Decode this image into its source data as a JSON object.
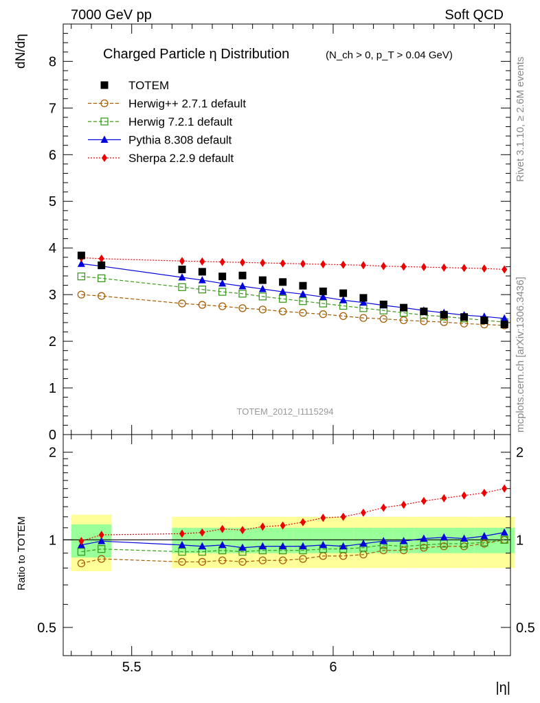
{
  "header": {
    "left": "7000 GeV pp",
    "right": "Soft QCD"
  },
  "side": {
    "rivet": "Rivet 3.1.10, ≥ 2.6M events",
    "mcplots": "mcplots.cern.ch [arXiv:1306.3436]"
  },
  "chart_data": {
    "type": "line",
    "title_main": "Charged Particle η Distribution",
    "title_sub": "(N_ch > 0, p_T > 0.04 GeV)",
    "watermark": "TOTEM_2012_I1115294",
    "ylabel_top": "dN/dη",
    "ylabel_bottom": "Ratio to TOTEM",
    "xlabel": "|η|",
    "xlim": [
      5.33,
      6.44
    ],
    "ylim_top": [
      0,
      8.8
    ],
    "ylim_bottom": [
      0.4,
      2.3
    ],
    "x_ticks": [
      5.5,
      6
    ],
    "x_tick_labels": [
      "5.5",
      "6"
    ],
    "y_ticks_top": [
      0,
      1,
      2,
      3,
      4,
      5,
      6,
      7,
      8
    ],
    "y_tick_labels_top": [
      "0",
      "1",
      "2",
      "3",
      "4",
      "5",
      "6",
      "7",
      "8"
    ],
    "y_ticks_bottom": [
      0.5,
      1,
      2
    ],
    "y_tick_labels_bottom": [
      "0.5",
      "1",
      "2"
    ],
    "legend_position": "top-left",
    "data": {
      "name": "TOTEM",
      "color": "#000000",
      "x": [
        5.375,
        5.425,
        5.625,
        5.675,
        5.725,
        5.775,
        5.825,
        5.875,
        5.925,
        5.975,
        6.025,
        6.075,
        6.125,
        6.175,
        6.225,
        6.275,
        6.325,
        6.375,
        6.425
      ],
      "y": [
        3.84,
        3.63,
        3.54,
        3.49,
        3.39,
        3.41,
        3.31,
        3.27,
        3.19,
        3.07,
        3.03,
        2.93,
        2.79,
        2.72,
        2.64,
        2.57,
        2.52,
        2.45,
        2.36
      ],
      "band_inner": [
        0.13,
        0.13,
        0.1,
        0.1,
        0.1,
        0.1,
        0.1,
        0.1,
        0.1,
        0.1,
        0.1,
        0.1,
        0.1,
        0.1,
        0.1,
        0.1,
        0.1,
        0.1,
        0.1
      ],
      "band_outer": [
        0.22,
        0.22,
        0.2,
        0.2,
        0.2,
        0.2,
        0.2,
        0.2,
        0.2,
        0.2,
        0.2,
        0.2,
        0.2,
        0.2,
        0.2,
        0.2,
        0.2,
        0.2,
        0.2
      ]
    },
    "series": [
      {
        "name": "Herwig++ 2.7.1 default",
        "color": "#a65b00",
        "marker": "open-circle",
        "line": "dashed",
        "y": [
          3.0,
          2.97,
          2.81,
          2.78,
          2.75,
          2.71,
          2.68,
          2.64,
          2.61,
          2.58,
          2.54,
          2.5,
          2.48,
          2.45,
          2.43,
          2.41,
          2.38,
          2.36,
          2.34
        ],
        "ratio": [
          0.83,
          0.86,
          0.84,
          0.84,
          0.85,
          0.84,
          0.85,
          0.85,
          0.86,
          0.88,
          0.88,
          0.89,
          0.92,
          0.92,
          0.94,
          0.95,
          0.95,
          0.97,
          1.0
        ]
      },
      {
        "name": "Herwig 7.2.1 default",
        "color": "#3a9a1a",
        "marker": "open-square",
        "line": "dashed",
        "y": [
          3.39,
          3.35,
          3.16,
          3.11,
          3.06,
          3.02,
          2.96,
          2.91,
          2.86,
          2.81,
          2.76,
          2.71,
          2.66,
          2.61,
          2.56,
          2.53,
          2.49,
          2.45,
          2.41
        ],
        "ratio": [
          0.91,
          0.93,
          0.91,
          0.91,
          0.92,
          0.91,
          0.92,
          0.92,
          0.92,
          0.93,
          0.93,
          0.94,
          0.96,
          0.95,
          0.96,
          0.97,
          0.97,
          0.98,
          1.0
        ]
      },
      {
        "name": "Pythia 8.308 default",
        "color": "#0000dd",
        "marker": "filled-triangle",
        "line": "solid",
        "y": [
          3.66,
          3.61,
          3.37,
          3.31,
          3.24,
          3.18,
          3.12,
          3.06,
          3.01,
          2.95,
          2.88,
          2.83,
          2.77,
          2.72,
          2.66,
          2.61,
          2.56,
          2.53,
          2.49
        ],
        "ratio": [
          0.96,
          0.99,
          0.96,
          0.95,
          0.96,
          0.94,
          0.95,
          0.95,
          0.95,
          0.96,
          0.95,
          0.97,
          0.99,
          0.99,
          1.01,
          1.02,
          1.01,
          1.03,
          1.06
        ]
      },
      {
        "name": "Sherpa 2.2.9 default",
        "color": "#ee0000",
        "marker": "filled-diamond",
        "line": "dotted",
        "y": [
          3.79,
          3.77,
          3.72,
          3.71,
          3.7,
          3.69,
          3.68,
          3.67,
          3.66,
          3.65,
          3.64,
          3.63,
          3.61,
          3.6,
          3.59,
          3.58,
          3.57,
          3.56,
          3.54
        ],
        "ratio": [
          0.99,
          1.04,
          1.05,
          1.06,
          1.09,
          1.08,
          1.11,
          1.12,
          1.15,
          1.19,
          1.2,
          1.24,
          1.29,
          1.32,
          1.36,
          1.39,
          1.42,
          1.45,
          1.5
        ]
      }
    ]
  }
}
